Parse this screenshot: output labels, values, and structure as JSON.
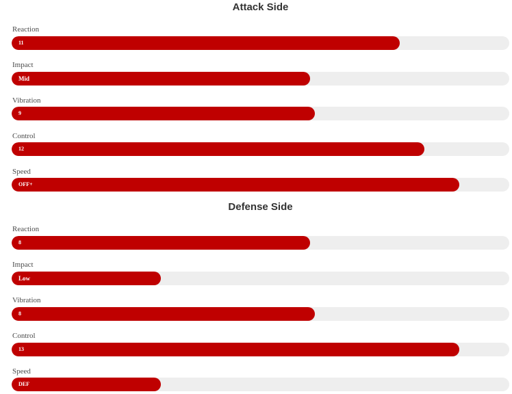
{
  "colors": {
    "fill": "#bf0000",
    "track": "#eeeeee",
    "title_text": "#333333",
    "label_text": "#4a4a4a",
    "value_text": "#ffffff"
  },
  "sections": [
    {
      "title": "Attack Side",
      "stats": [
        {
          "label": "Reaction",
          "value": "11",
          "fill_fraction": 0.78
        },
        {
          "label": "Impact",
          "value": "Mid",
          "fill_fraction": 0.6
        },
        {
          "label": "Vibration",
          "value": "9",
          "fill_fraction": 0.61
        },
        {
          "label": "Control",
          "value": "12",
          "fill_fraction": 0.83
        },
        {
          "label": "Speed",
          "value": "OFF+",
          "fill_fraction": 0.9
        }
      ]
    },
    {
      "title": "Defense Side",
      "stats": [
        {
          "label": "Reaction",
          "value": "8",
          "fill_fraction": 0.6
        },
        {
          "label": "Impact",
          "value": "Low",
          "fill_fraction": 0.3
        },
        {
          "label": "Vibration",
          "value": "8",
          "fill_fraction": 0.61
        },
        {
          "label": "Control",
          "value": "13",
          "fill_fraction": 0.9
        },
        {
          "label": "Speed",
          "value": "DEF",
          "fill_fraction": 0.3
        }
      ]
    }
  ]
}
